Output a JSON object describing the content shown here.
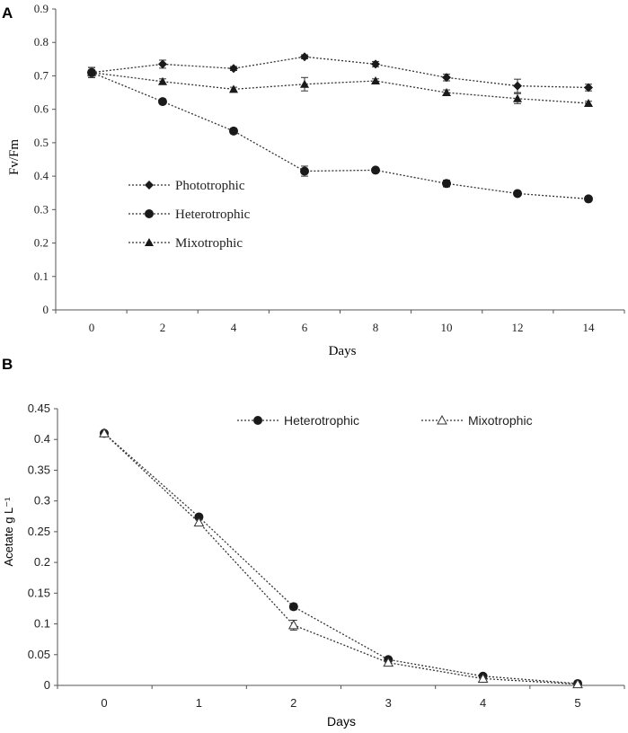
{
  "chart_data": [
    {
      "panel": "A",
      "type": "line",
      "xlabel": "Days",
      "ylabel": "Fv/Fm",
      "x": [
        0,
        2,
        4,
        6,
        8,
        10,
        12,
        14
      ],
      "xticks": [
        "0",
        "2",
        "4",
        "6",
        "8",
        "10",
        "12",
        "14"
      ],
      "ylim": [
        0,
        0.9
      ],
      "yticks": [
        "0",
        "0.1",
        "0.2",
        "0.3",
        "0.4",
        "0.5",
        "0.6",
        "0.7",
        "0.8",
        "0.9"
      ],
      "grid": false,
      "legend_position": "left-middle",
      "series": [
        {
          "name": "Phototrophic",
          "marker": "diamond",
          "values": [
            0.71,
            0.735,
            0.722,
            0.757,
            0.735,
            0.695,
            0.67,
            0.665
          ],
          "errors": [
            0.015,
            0.012,
            0.006,
            0.006,
            0.008,
            0.01,
            0.02,
            0.01
          ]
        },
        {
          "name": "Heterotrophic",
          "marker": "circle",
          "values": [
            0.71,
            0.623,
            0.535,
            0.415,
            0.418,
            0.378,
            0.348,
            0.332
          ],
          "errors": [
            0.015,
            0.006,
            0.008,
            0.015,
            0.006,
            0.01,
            0.006,
            0.004
          ]
        },
        {
          "name": "Mixotrophic",
          "marker": "triangle",
          "values": [
            0.71,
            0.683,
            0.66,
            0.675,
            0.685,
            0.65,
            0.632,
            0.618
          ],
          "errors": [
            0.015,
            0.008,
            0.006,
            0.02,
            0.006,
            0.008,
            0.015,
            0.006
          ]
        }
      ]
    },
    {
      "panel": "B",
      "type": "line",
      "xlabel": "Days",
      "ylabel": "Acetate g L⁻¹",
      "x": [
        0,
        1,
        2,
        3,
        4,
        5
      ],
      "xticks": [
        "0",
        "1",
        "2",
        "3",
        "4",
        "5"
      ],
      "ylim": [
        0,
        0.45
      ],
      "yticks": [
        "0",
        "0.05",
        "0.1",
        "0.15",
        "0.2",
        "0.25",
        "0.3",
        "0.35",
        "0.4",
        "0.45"
      ],
      "grid": false,
      "legend_position": "top-right",
      "series": [
        {
          "name": "Heterotrophic",
          "marker": "circle",
          "values": [
            0.41,
            0.274,
            0.128,
            0.042,
            0.015,
            0.003
          ],
          "errors": [
            0.004,
            0.004,
            0.005,
            0.003,
            0.002,
            0.001
          ]
        },
        {
          "name": "Mixotrophic",
          "marker": "triangle-open",
          "values": [
            0.41,
            0.265,
            0.098,
            0.037,
            0.011,
            0.002
          ],
          "errors": [
            0.004,
            0.005,
            0.008,
            0.003,
            0.003,
            0.001
          ]
        }
      ]
    }
  ]
}
